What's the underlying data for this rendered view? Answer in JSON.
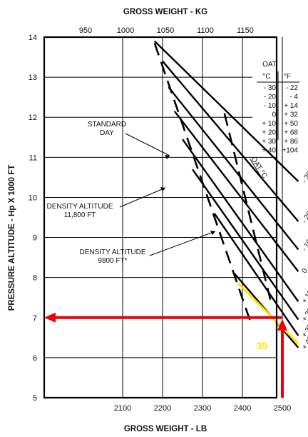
{
  "chart_data": {
    "type": "line",
    "title_top": "GROSS WEIGHT - KG",
    "xlabel": "GROSS WEIGHT - LB",
    "ylabel": "PRESSURE ALTITUDE - Hp X 1000 FT",
    "xlim": [
      1950,
      2570
    ],
    "ylim": [
      5,
      14
    ],
    "x_ticks": [
      2100,
      2200,
      2300,
      2400,
      2500
    ],
    "y_ticks": [
      5,
      6,
      7,
      8,
      9,
      10,
      11,
      12,
      13,
      14
    ],
    "kg_ticks": [
      950,
      1000,
      1050,
      1100,
      1150
    ],
    "grid": true,
    "oat_table": {
      "title": "OAT",
      "headers": [
        "°C",
        "°F"
      ],
      "rows": [
        [
          "- 30",
          "- 22"
        ],
        [
          "- 20",
          "- 4"
        ],
        [
          "- 10",
          "+ 14"
        ],
        [
          "0",
          "+ 32"
        ],
        [
          "+ 10",
          "+ 50"
        ],
        [
          "+ 20",
          "+ 68"
        ],
        [
          "+ 30",
          "+ 86"
        ],
        [
          "+ 40",
          "+104"
        ]
      ]
    },
    "oat_axis_title": "OAT °C",
    "oat_lines": [
      {
        "label": "- 30",
        "x": [
          2180,
          2540
        ],
        "y": [
          13.9,
          10.4
        ]
      },
      {
        "label": "- 20",
        "x": [
          2200,
          2540
        ],
        "y": [
          13.4,
          9.4
        ]
      },
      {
        "label": "- 10",
        "x": [
          2215,
          2540
        ],
        "y": [
          12.75,
          8.7
        ]
      },
      {
        "label": "0",
        "x": [
          2230,
          2540
        ],
        "y": [
          12.15,
          8.15
        ]
      },
      {
        "label": "+ 10",
        "x": [
          2250,
          2540
        ],
        "y": [
          11.45,
          7.4
        ]
      },
      {
        "label": "+ 20",
        "x": [
          2275,
          2540
        ],
        "y": [
          10.7,
          6.95
        ]
      },
      {
        "label": "+ 30",
        "x": [
          2330,
          2540
        ],
        "y": [
          9.6,
          6.55
        ]
      },
      {
        "label": "+ 40",
        "x": [
          2380,
          2540
        ],
        "y": [
          8.1,
          6.25
        ]
      }
    ],
    "dashed_curves": [
      {
        "x": [
          2180,
          2420
        ],
        "y": [
          13.85,
          6.9
        ]
      },
      {
        "x": [
          2355,
          2470
        ],
        "y": [
          12.1,
          7.45
        ]
      }
    ],
    "annotations": [
      {
        "text": [
          "STANDARD",
          "DAY"
        ]
      },
      {
        "text": [
          "DENSITY ALTITUDE",
          "11,800 FT"
        ]
      },
      {
        "text": [
          "DENSITY ALTITUDE",
          "9800 FT*"
        ]
      }
    ],
    "highlight": {
      "oat_label": "35",
      "oat_line": {
        "x": [
          2390,
          2540
        ],
        "y": [
          7.85,
          6.35
        ]
      },
      "weight_lb": 2500,
      "altitude_ft_x1000": 7,
      "arrow_color": "#e8000b",
      "oat_color": "#ffe600"
    }
  }
}
